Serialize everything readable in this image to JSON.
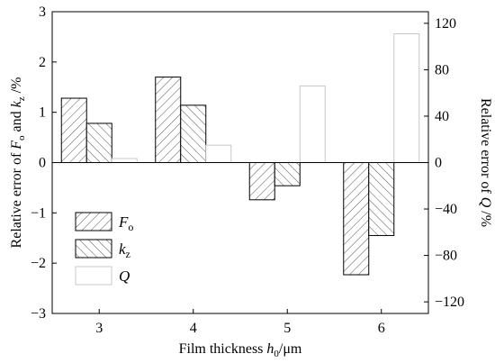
{
  "chart_data": {
    "type": "bar",
    "categories": [
      "3",
      "4",
      "5",
      "6"
    ],
    "xlabel": {
      "text": "Film thickness ",
      "var": "h",
      "sub": "0",
      "unit": "/μm"
    },
    "ylabel_left": {
      "pre": "Relative error of ",
      "v1": "F",
      "s1": "o",
      "mid": " and ",
      "v2": "k",
      "s2": "z",
      "post": " /%"
    },
    "ylabel_right": {
      "pre": "Relative error of ",
      "v": "Q",
      "post": " /%"
    },
    "ylim_left": [
      -3,
      3
    ],
    "yticks_left": [
      -3,
      -2,
      -1,
      0,
      1,
      2,
      3
    ],
    "ylim_right": [
      -130,
      130
    ],
    "yticks_right": [
      -120,
      -80,
      -40,
      0,
      40,
      80,
      120
    ],
    "series": [
      {
        "name": "F",
        "sub": "o",
        "axis": "left",
        "pattern": "hatch-forward",
        "values": [
          1.28,
          1.7,
          -0.74,
          -2.23
        ]
      },
      {
        "name": "k",
        "sub": "z",
        "axis": "left",
        "pattern": "hatch-back",
        "values": [
          0.78,
          1.14,
          -0.46,
          -1.45
        ]
      },
      {
        "name": "Q",
        "sub": "",
        "axis": "right",
        "pattern": "plain-light",
        "values": [
          3.5,
          15,
          66,
          111
        ]
      }
    ],
    "legend_position": "bottom-left",
    "grid": false
  }
}
